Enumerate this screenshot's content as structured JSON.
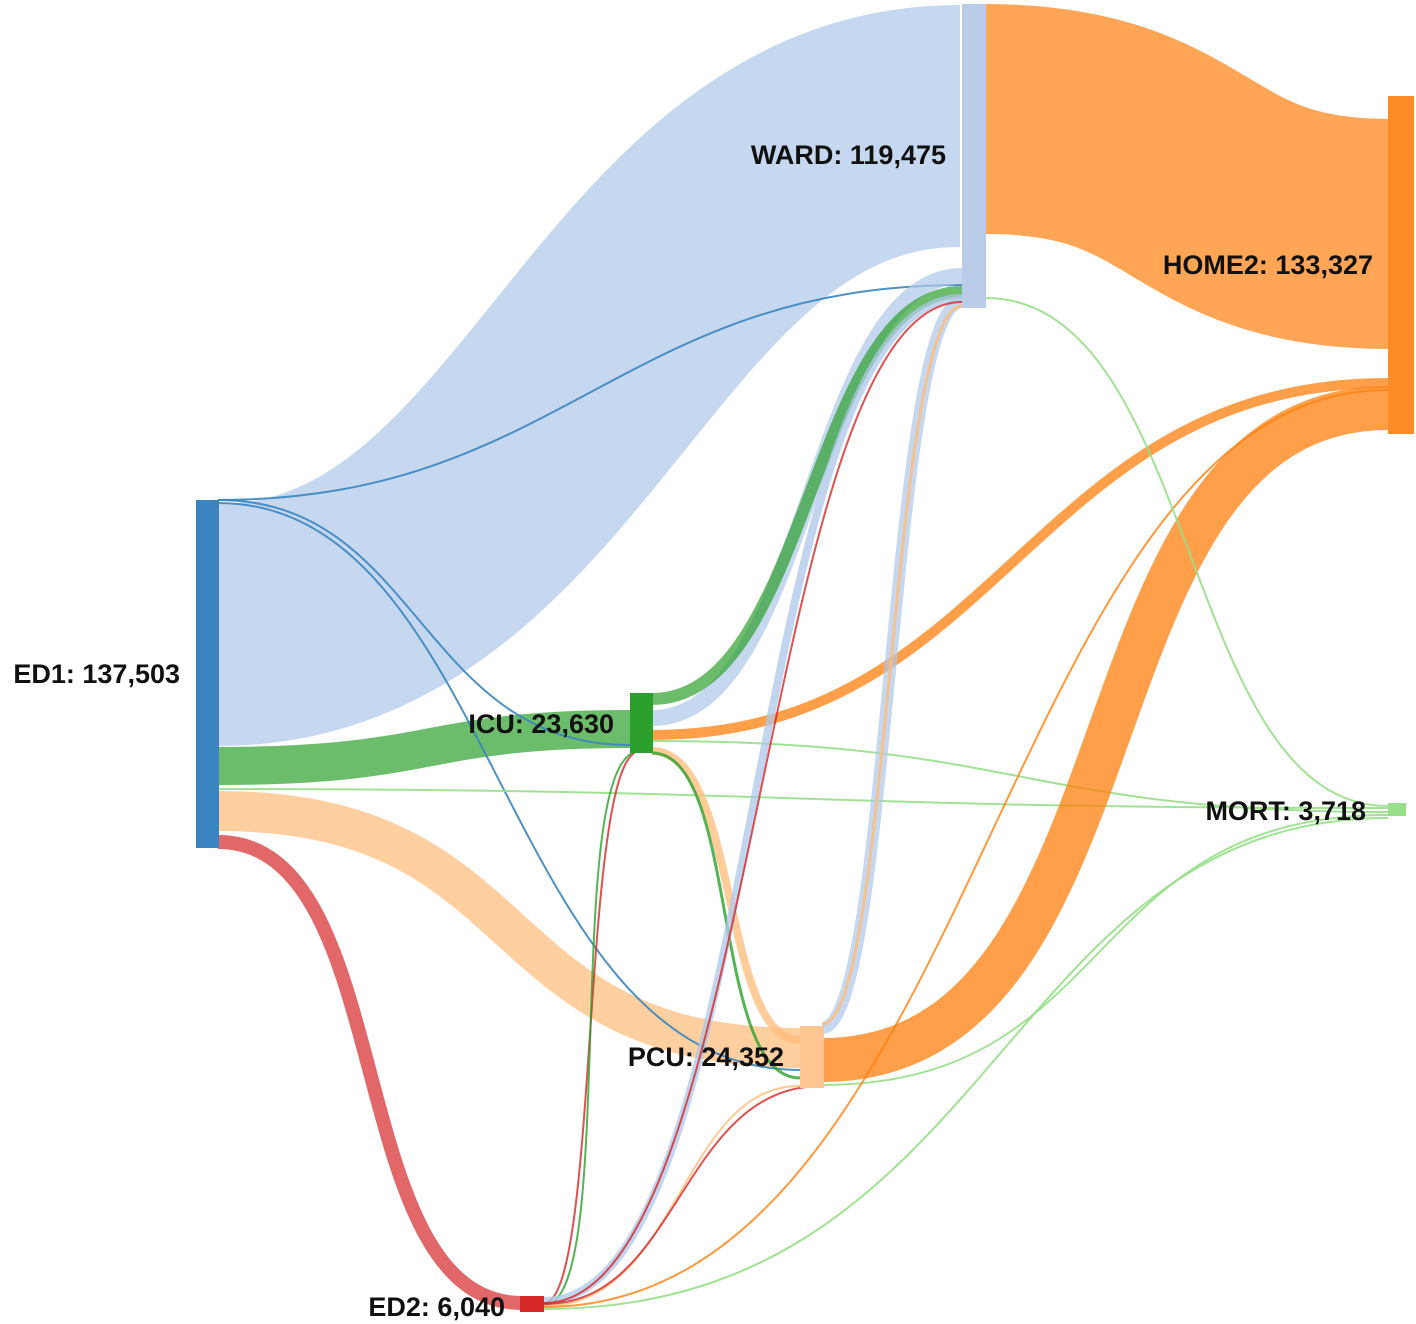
{
  "nodes": [
    {
      "id": "ED1",
      "label": "ED1: 137,503",
      "color": "#3a85bf"
    },
    {
      "id": "WARD",
      "label": "WARD: 119,475",
      "color": "#b9cde9"
    },
    {
      "id": "ICU",
      "label": "ICU: 23,630",
      "color": "#2ca02c"
    },
    {
      "id": "PCU",
      "label": "PCU: 24,352",
      "color": "#fdc592"
    },
    {
      "id": "ED2",
      "label": "ED2: 6,040",
      "color": "#d62728"
    },
    {
      "id": "HOME2",
      "label": "HOME2: 133,327",
      "color": "#ff8c26"
    },
    {
      "id": "MORT",
      "label": "MORT: 3,718",
      "color": "#98df8a"
    }
  ],
  "link_colors": {
    "ward": "#aec7e8",
    "ward_thin": "#3a85bf",
    "icu": "#2ca02c",
    "pcu": "#ffbb78",
    "ed2": "#d62728",
    "home2": "#ff7f0e",
    "mort": "#98df8a"
  }
}
